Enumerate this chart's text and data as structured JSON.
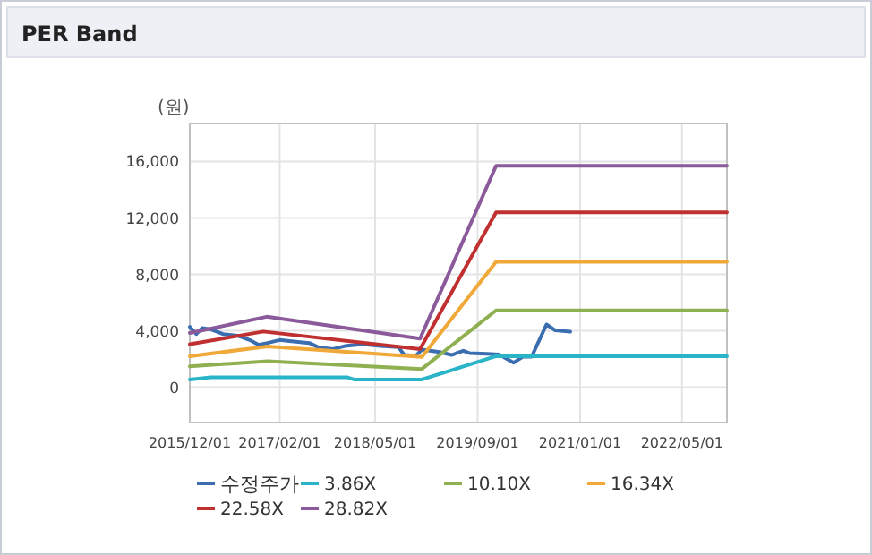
{
  "chart_data": {
    "type": "line",
    "title": "PER Band",
    "ylabel": "(원)",
    "xlim": [
      "2015-12-01",
      "2022-12-01"
    ],
    "xticks": [
      {
        "value": "2015-12-01",
        "label": "2015/12/01"
      },
      {
        "value": "2017-02-01",
        "label": "2017/02/01"
      },
      {
        "value": "2018-05-01",
        "label": "2018/05/01"
      },
      {
        "value": "2019-09-01",
        "label": "2019/09/01"
      },
      {
        "value": "2021-01-01",
        "label": "2021/01/01"
      },
      {
        "value": "2022-05-01",
        "label": "2022/05/01"
      }
    ],
    "ylim": [
      -2500,
      18700
    ],
    "yticks": [
      {
        "value": 0,
        "label": "0"
      },
      {
        "value": 4000,
        "label": "4,000"
      },
      {
        "value": 8000,
        "label": "8,000"
      },
      {
        "value": 12000,
        "label": "12,000"
      },
      {
        "value": 16000,
        "label": "16,000"
      }
    ],
    "grid": true,
    "legend": "bottom",
    "marker": "none",
    "line_style": "solid",
    "series": [
      {
        "name": "수정주가",
        "color": "#3a6eb0",
        "x": [
          "2015-12-01",
          "2016-01-01",
          "2016-01-29",
          "2016-03-12",
          "2016-05-07",
          "2016-07-17",
          "2016-09-11",
          "2016-10-24",
          "2016-12-05",
          "2017-02-01",
          "2017-03-29",
          "2017-06-22",
          "2017-08-03",
          "2017-10-13",
          "2017-12-08",
          "2018-03-03",
          "2018-05-27",
          "2018-08-20",
          "2018-09-17",
          "2018-11-12",
          "2018-12-10",
          "2019-03-04",
          "2019-04-30",
          "2019-06-25",
          "2019-07-24",
          "2019-10-16",
          "2019-12-12",
          "2020-02-20",
          "2020-04-03",
          "2020-05-15",
          "2020-07-25",
          "2020-09-05",
          "2020-11-15"
        ],
        "values": [
          4280,
          3770,
          4200,
          4100,
          3770,
          3650,
          3350,
          3010,
          3140,
          3350,
          3260,
          3140,
          2840,
          2710,
          2920,
          3050,
          2920,
          2840,
          2290,
          2250,
          2670,
          2500,
          2290,
          2590,
          2420,
          2370,
          2330,
          1740,
          2160,
          2160,
          4450,
          4030,
          3940
        ]
      },
      {
        "name": "3.86X",
        "color": "#2ab4c8",
        "x": [
          "2015-12-01",
          "2016-03-11",
          "2017-12-21",
          "2018-01-20",
          "2018-12-10",
          "2019-11-28",
          "2022-12-01"
        ],
        "values": [
          550,
          700,
          700,
          550,
          550,
          2200,
          2200
        ]
      },
      {
        "name": "10.10X",
        "color": "#8fb050",
        "x": [
          "2015-12-01",
          "2016-12-05",
          "2018-12-10",
          "2019-11-28",
          "2022-12-01"
        ],
        "values": [
          1480,
          1850,
          1300,
          5450,
          5450
        ]
      },
      {
        "name": "16.34X",
        "color": "#f0a838",
        "x": [
          "2015-12-01",
          "2016-12-05",
          "2018-12-10",
          "2019-11-28",
          "2022-12-01"
        ],
        "values": [
          2200,
          2900,
          2150,
          8900,
          8900
        ]
      },
      {
        "name": "22.58X",
        "color": "#c03030",
        "x": [
          "2015-12-01",
          "2016-11-15",
          "2018-12-01",
          "2019-11-28",
          "2022-12-01"
        ],
        "values": [
          3050,
          3950,
          2700,
          12400,
          12400
        ]
      },
      {
        "name": "28.82X",
        "color": "#8a5a9a",
        "x": [
          "2015-12-01",
          "2016-12-01",
          "2018-12-01",
          "2019-11-28",
          "2022-12-01"
        ],
        "values": [
          3850,
          5000,
          3450,
          15700,
          15700
        ]
      }
    ]
  }
}
